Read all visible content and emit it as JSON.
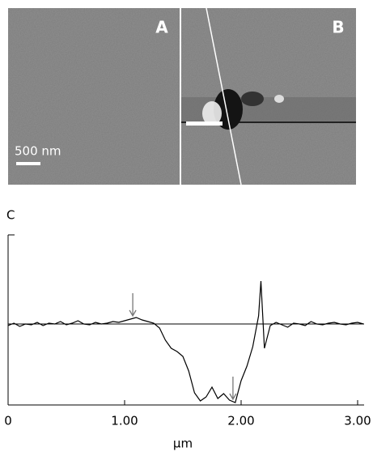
{
  "panels": {
    "a_label": "A",
    "b_label": "B",
    "scale_bar": "500 nm"
  },
  "chart_data": {
    "type": "line",
    "panel_label": "C",
    "x_label": "µm",
    "x": [
      0,
      0.05,
      0.1,
      0.15,
      0.2,
      0.25,
      0.3,
      0.35,
      0.4,
      0.45,
      0.5,
      0.55,
      0.6,
      0.65,
      0.7,
      0.75,
      0.8,
      0.85,
      0.9,
      0.95,
      1.0,
      1.05,
      1.1,
      1.15,
      1.2,
      1.25,
      1.3,
      1.35,
      1.4,
      1.45,
      1.5,
      1.55,
      1.6,
      1.65,
      1.7,
      1.75,
      1.8,
      1.85,
      1.9,
      1.95,
      2.0,
      2.05,
      2.1,
      2.15,
      2.17,
      2.2,
      2.25,
      2.3,
      2.35,
      2.4,
      2.45,
      2.5,
      2.55,
      2.6,
      2.65,
      2.7,
      2.75,
      2.8,
      2.85,
      2.9,
      2.95,
      3.0,
      3.05
    ],
    "series": [
      {
        "color": "#000000",
        "values": [
          98,
          101,
          97,
          100,
          99,
          102,
          98,
          101,
          100,
          103,
          99,
          101,
          104,
          100,
          99,
          102,
          100,
          101,
          103,
          102,
          104,
          106,
          108,
          105,
          103,
          101,
          95,
          80,
          70,
          66,
          60,
          42,
          15,
          5,
          10,
          22,
          8,
          14,
          6,
          3,
          30,
          48,
          72,
          110,
          153,
          70,
          98,
          102,
          99,
          96,
          101,
          100,
          98,
          103,
          100,
          99,
          101,
          102,
          100,
          99,
          101,
          102,
          100
        ]
      }
    ],
    "reference_line": 100,
    "arrows_x": [
      1.07,
      1.93
    ],
    "xlim": [
      0,
      3.0
    ],
    "ylim": [
      0,
      210
    ],
    "xticks": [
      0,
      {
        "value": 1,
        "label": "1.00"
      },
      {
        "value": 2,
        "label": "2.00"
      },
      {
        "value": 3,
        "label": "3.00"
      }
    ]
  }
}
